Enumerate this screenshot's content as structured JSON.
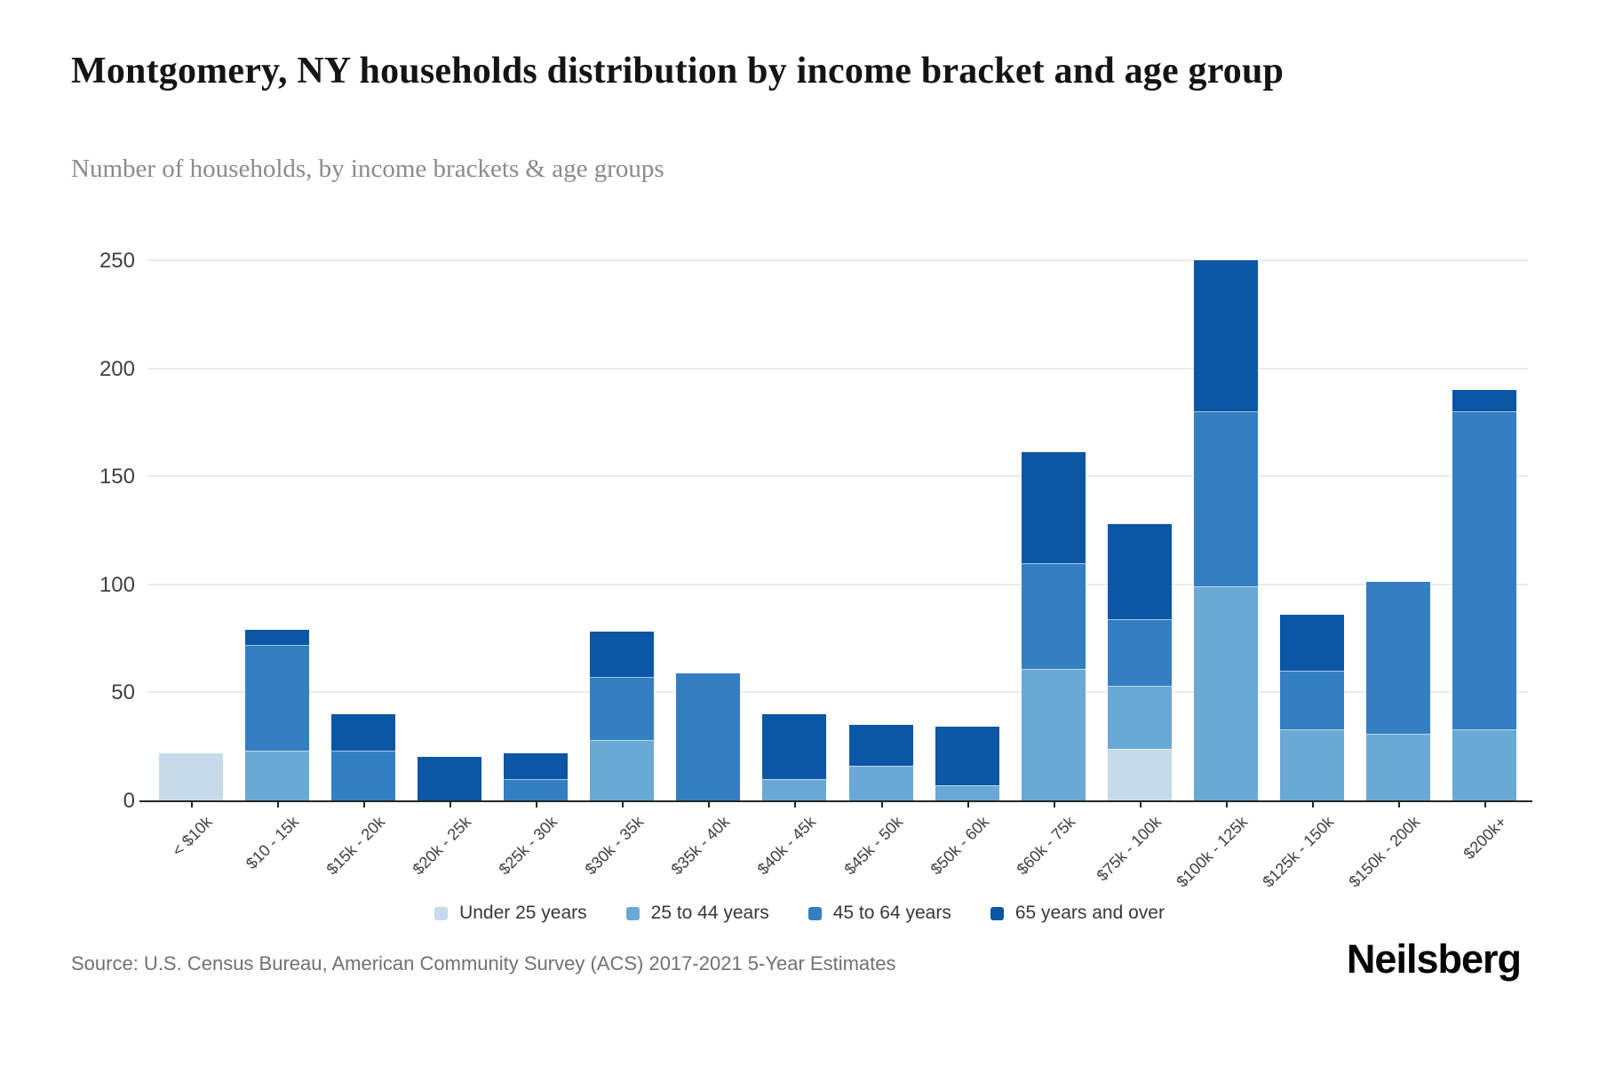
{
  "header": {
    "title": "Montgomery, NY households distribution by income bracket and age group",
    "subtitle": "Number of households, by income brackets & age groups"
  },
  "chart_data": {
    "type": "bar",
    "stacked": true,
    "title": "Montgomery, NY households distribution by income bracket and age group",
    "subtitle": "Number of households, by income brackets & age groups",
    "xlabel": "",
    "ylabel": "",
    "ylim": [
      0,
      250
    ],
    "yticks": [
      0,
      50,
      100,
      150,
      200,
      250
    ],
    "grid": "horizontal",
    "legend_position": "bottom",
    "categories": [
      "< $10k",
      "$10 - 15k",
      "$15k - 20k",
      "$20k - 25k",
      "$25k - 30k",
      "$30k - 35k",
      "$35k - 40k",
      "$40k - 45k",
      "$45k - 50k",
      "$50k - 60k",
      "$60k - 75k",
      "$75k - 100k",
      "$100k - 125k",
      "$125k - 150k",
      "$150k - 200k",
      "$200k+"
    ],
    "series": [
      {
        "name": "Under 25 years",
        "color": "#c5dbeb",
        "values": [
          22,
          0,
          0,
          0,
          0,
          0,
          0,
          0,
          0,
          0,
          0,
          24,
          0,
          0,
          0,
          0
        ]
      },
      {
        "name": "25 to 44 years",
        "color": "#6aa9d6",
        "values": [
          0,
          23,
          0,
          0,
          0,
          28,
          0,
          10,
          16,
          7,
          61,
          29,
          99,
          33,
          31,
          33
        ]
      },
      {
        "name": "45 to 64 years",
        "color": "#337fc1",
        "values": [
          0,
          49,
          23,
          0,
          10,
          29,
          59,
          0,
          0,
          0,
          49,
          31,
          81,
          27,
          70,
          147
        ]
      },
      {
        "name": "65 years and over",
        "color": "#0c56a6",
        "values": [
          0,
          7,
          17,
          20,
          12,
          21,
          0,
          30,
          19,
          27,
          51,
          44,
          70,
          26,
          0,
          10
        ]
      }
    ],
    "totals": [
      22,
      79,
      40,
      20,
      22,
      78,
      59,
      40,
      35,
      34,
      161,
      128,
      250,
      86,
      101,
      190
    ]
  },
  "footer": {
    "source": "Source: U.S. Census Bureau, American Community Survey (ACS) 2017-2021 5-Year Estimates",
    "brand": "Neilsberg"
  }
}
